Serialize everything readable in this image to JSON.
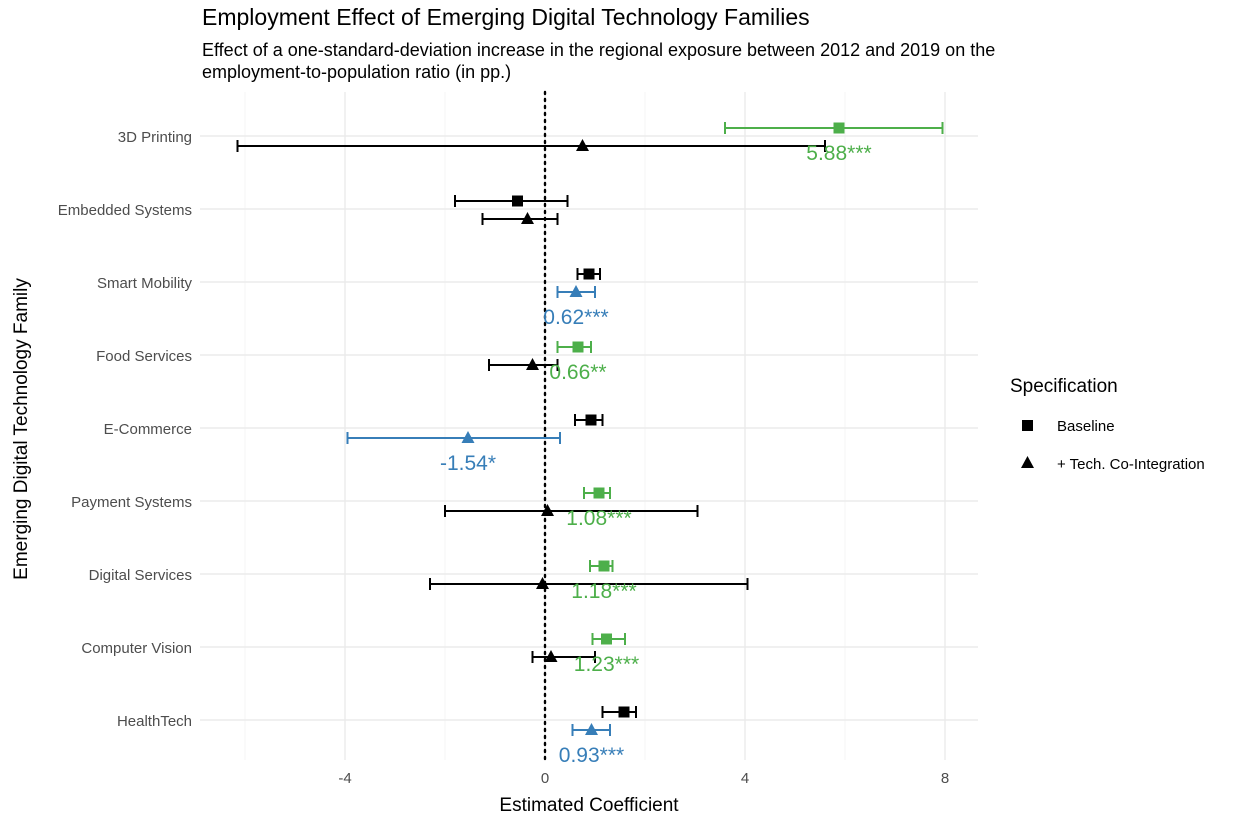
{
  "chart_data": {
    "type": "errorbar",
    "title": "Employment Effect of Emerging Digital Technology Families",
    "subtitle_lines": [
      "Effect of a one-standard-deviation increase in the regional exposure between 2012 and 2019 on the",
      "employment-to-population ratio (in pp.)"
    ],
    "xlabel": "Estimated Coefficient",
    "ylabel": "Emerging Digital Technology Family",
    "xlim": [
      -6.8,
      8.6
    ],
    "x_ticks": [
      -4,
      0,
      4,
      8
    ],
    "x_tick_labels": [
      "-4",
      "0",
      "4",
      "8"
    ],
    "reference_line": 0,
    "grid": true,
    "legend": {
      "title": "Specification",
      "placement": "right",
      "items": [
        {
          "label": "Baseline",
          "shape": "square"
        },
        {
          "label": "+ Tech. Co-Integration",
          "shape": "triangle"
        }
      ]
    },
    "colors": {
      "positive_significant": "#4daf4a",
      "negative_significant": "#377eb8",
      "not_significant": "#000000"
    },
    "categories": [
      "3D Printing",
      "Embedded Systems",
      "Smart Mobility",
      "Food Services",
      "E-Commerce",
      "Payment Systems",
      "Digital Services",
      "Computer Vision",
      "HealthTech"
    ],
    "series": [
      {
        "name": "Baseline",
        "points": [
          {
            "category": "3D Printing",
            "estimate": 5.88,
            "lo": 3.6,
            "hi": 7.95,
            "color": "#4daf4a",
            "label": "5.88***"
          },
          {
            "category": "Embedded Systems",
            "estimate": -0.55,
            "lo": -1.8,
            "hi": 0.45,
            "color": "#000000",
            "label": ""
          },
          {
            "category": "Smart Mobility",
            "estimate": 0.88,
            "lo": 0.65,
            "hi": 1.1,
            "color": "#000000",
            "label": ""
          },
          {
            "category": "Food Services",
            "estimate": 0.66,
            "lo": 0.25,
            "hi": 0.92,
            "color": "#4daf4a",
            "label": "0.66**"
          },
          {
            "category": "E-Commerce",
            "estimate": 0.92,
            "lo": 0.6,
            "hi": 1.15,
            "color": "#000000",
            "label": ""
          },
          {
            "category": "Payment Systems",
            "estimate": 1.08,
            "lo": 0.78,
            "hi": 1.3,
            "color": "#4daf4a",
            "label": "1.08***"
          },
          {
            "category": "Digital Services",
            "estimate": 1.18,
            "lo": 0.9,
            "hi": 1.35,
            "color": "#4daf4a",
            "label": "1.18***"
          },
          {
            "category": "Computer Vision",
            "estimate": 1.23,
            "lo": 0.95,
            "hi": 1.6,
            "color": "#4daf4a",
            "label": "1.23***"
          },
          {
            "category": "HealthTech",
            "estimate": 1.58,
            "lo": 1.15,
            "hi": 1.82,
            "color": "#000000",
            "label": ""
          }
        ]
      },
      {
        "name": "+ Tech. Co-Integration",
        "points": [
          {
            "category": "3D Printing",
            "estimate": 0.75,
            "lo": -6.15,
            "hi": 5.6,
            "color": "#000000",
            "label": ""
          },
          {
            "category": "Embedded Systems",
            "estimate": -0.35,
            "lo": -1.25,
            "hi": 0.25,
            "color": "#000000",
            "label": ""
          },
          {
            "category": "Smart Mobility",
            "estimate": 0.62,
            "lo": 0.25,
            "hi": 1.0,
            "color": "#377eb8",
            "label": "0.62***"
          },
          {
            "category": "Food Services",
            "estimate": -0.25,
            "lo": -1.12,
            "hi": 0.25,
            "color": "#000000",
            "label": ""
          },
          {
            "category": "E-Commerce",
            "estimate": -1.54,
            "lo": -3.95,
            "hi": 0.3,
            "color": "#377eb8",
            "label": "-1.54*"
          },
          {
            "category": "Payment Systems",
            "estimate": 0.05,
            "lo": -2.0,
            "hi": 3.05,
            "color": "#000000",
            "label": ""
          },
          {
            "category": "Digital Services",
            "estimate": -0.05,
            "lo": -2.3,
            "hi": 4.05,
            "color": "#000000",
            "label": ""
          },
          {
            "category": "Computer Vision",
            "estimate": 0.12,
            "lo": -0.25,
            "hi": 1.0,
            "color": "#000000",
            "label": ""
          },
          {
            "category": "HealthTech",
            "estimate": 0.93,
            "lo": 0.55,
            "hi": 1.3,
            "color": "#377eb8",
            "label": "0.93***"
          }
        ]
      }
    ]
  }
}
